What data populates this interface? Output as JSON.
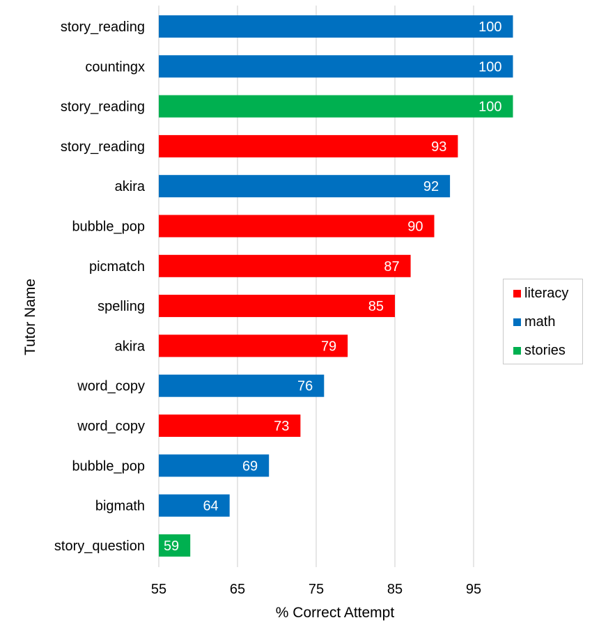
{
  "chart_data": {
    "type": "bar",
    "orientation": "horizontal",
    "xlabel": "% Correct Attempt",
    "ylabel": "Tutor Name",
    "xlim": [
      55,
      100
    ],
    "xticks": [
      55,
      65,
      75,
      85,
      95
    ],
    "grid": "vertical",
    "legend_position": "right",
    "colors": {
      "literacy": "#ff0000",
      "math": "#0070c0",
      "stories": "#00b050"
    },
    "legend": [
      {
        "name": "literacy",
        "color": "#ff0000"
      },
      {
        "name": "math",
        "color": "#0070c0"
      },
      {
        "name": "stories",
        "color": "#00b050"
      }
    ],
    "bars": [
      {
        "name": "story_reading",
        "value": 100,
        "group": "math"
      },
      {
        "name": "countingx",
        "value": 100,
        "group": "math"
      },
      {
        "name": "story_reading",
        "value": 100,
        "group": "stories"
      },
      {
        "name": "story_reading",
        "value": 93,
        "group": "literacy"
      },
      {
        "name": "akira",
        "value": 92,
        "group": "math"
      },
      {
        "name": "bubble_pop",
        "value": 90,
        "group": "literacy"
      },
      {
        "name": "picmatch",
        "value": 87,
        "group": "literacy"
      },
      {
        "name": "spelling",
        "value": 85,
        "group": "literacy"
      },
      {
        "name": "akira",
        "value": 79,
        "group": "literacy"
      },
      {
        "name": "word_copy",
        "value": 76,
        "group": "math"
      },
      {
        "name": "word_copy",
        "value": 73,
        "group": "literacy"
      },
      {
        "name": "bubble_pop",
        "value": 69,
        "group": "math"
      },
      {
        "name": "bigmath",
        "value": 64,
        "group": "math"
      },
      {
        "name": "story_question",
        "value": 59,
        "group": "stories"
      }
    ]
  }
}
